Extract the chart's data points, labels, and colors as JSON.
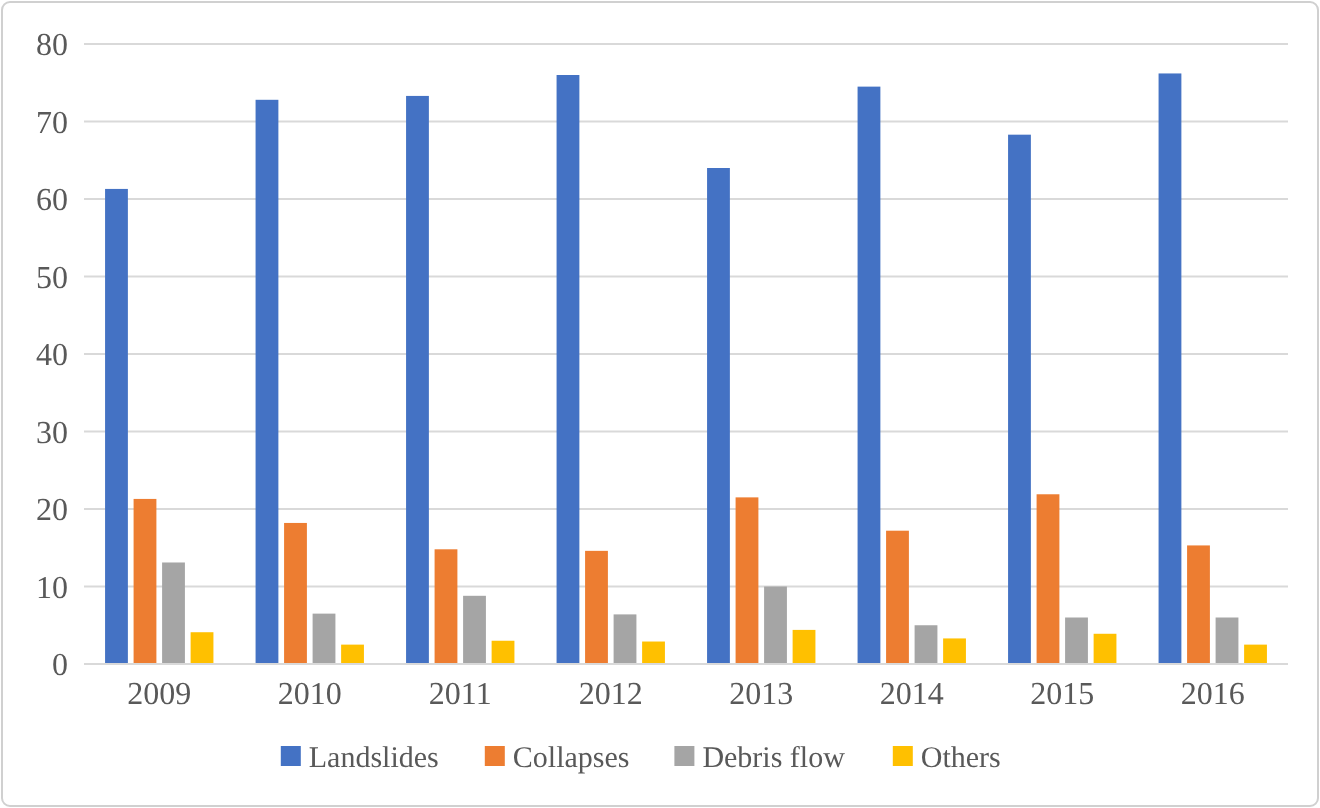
{
  "chart_data": {
    "type": "bar",
    "categories": [
      "2009",
      "2010",
      "2011",
      "2012",
      "2013",
      "2014",
      "2015",
      "2016"
    ],
    "series": [
      {
        "name": "Landslides",
        "color": "#4472c4",
        "values": [
          61.3,
          72.8,
          73.3,
          76,
          64,
          74.5,
          68.3,
          76.2
        ]
      },
      {
        "name": "Collapses",
        "color": "#ed7d31",
        "values": [
          21.3,
          18.2,
          14.8,
          14.6,
          21.5,
          17.2,
          21.9,
          15.3
        ]
      },
      {
        "name": "Debris flow",
        "color": "#a5a5a5",
        "values": [
          13.1,
          6.5,
          8.8,
          6.4,
          10,
          5,
          6,
          6
        ]
      },
      {
        "name": "Others",
        "color": "#ffc000",
        "values": [
          4.1,
          2.5,
          3,
          2.9,
          4.4,
          3.3,
          3.9,
          2.5
        ]
      }
    ],
    "ylim": [
      0,
      80
    ],
    "yticks": [
      0,
      10,
      20,
      30,
      40,
      50,
      60,
      70,
      80
    ],
    "grid": "y",
    "legend": "bottom"
  }
}
